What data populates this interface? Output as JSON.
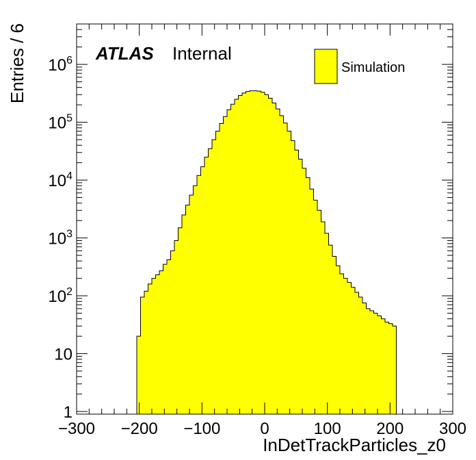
{
  "chart_data": {
    "type": "histogram",
    "title": "",
    "xlabel": "InDetTrackParticles_z0",
    "ylabel": "Entries / 6",
    "xlim": [
      -300,
      300
    ],
    "ylim": [
      0.9,
      5000000
    ],
    "log_y": true,
    "grid": false,
    "legend_position": "top-right",
    "bin_width": 6,
    "x_ticks": [
      "−300",
      "−200",
      "−100",
      "0",
      "100",
      "200",
      "300"
    ],
    "y_ticks": [
      {
        "value": 1,
        "base": "1",
        "exp": ""
      },
      {
        "value": 10,
        "base": "10",
        "exp": ""
      },
      {
        "value": 100,
        "base": "10",
        "exp": "2"
      },
      {
        "value": 1000,
        "base": "10",
        "exp": "3"
      },
      {
        "value": 10000,
        "base": "10",
        "exp": "4"
      },
      {
        "value": 100000,
        "base": "10",
        "exp": "5"
      },
      {
        "value": 1000000,
        "base": "10",
        "exp": "6"
      }
    ],
    "annotations": {
      "atlas": "ATLAS",
      "internal": "Internal"
    },
    "series": [
      {
        "name": "Simulation",
        "color": "#ffff00",
        "edgecolor": "#000000",
        "bin_edges_start": -204,
        "values": [
          20,
          95,
          120,
          160,
          200,
          230,
          270,
          350,
          420,
          600,
          900,
          1500,
          2500,
          3700,
          5500,
          8000,
          12000,
          17000,
          25000,
          35000,
          50000,
          70000,
          95000,
          125000,
          165000,
          205000,
          250000,
          290000,
          320000,
          340000,
          350000,
          350000,
          345000,
          330000,
          300000,
          260000,
          215000,
          170000,
          130000,
          97000,
          70000,
          48000,
          33000,
          23000,
          16000,
          11000,
          7000,
          4500,
          3000,
          1900,
          1200,
          750,
          480,
          330,
          240,
          200,
          170,
          140,
          115,
          95,
          75,
          60,
          55,
          50,
          45,
          40,
          35,
          33,
          30
        ]
      }
    ]
  }
}
